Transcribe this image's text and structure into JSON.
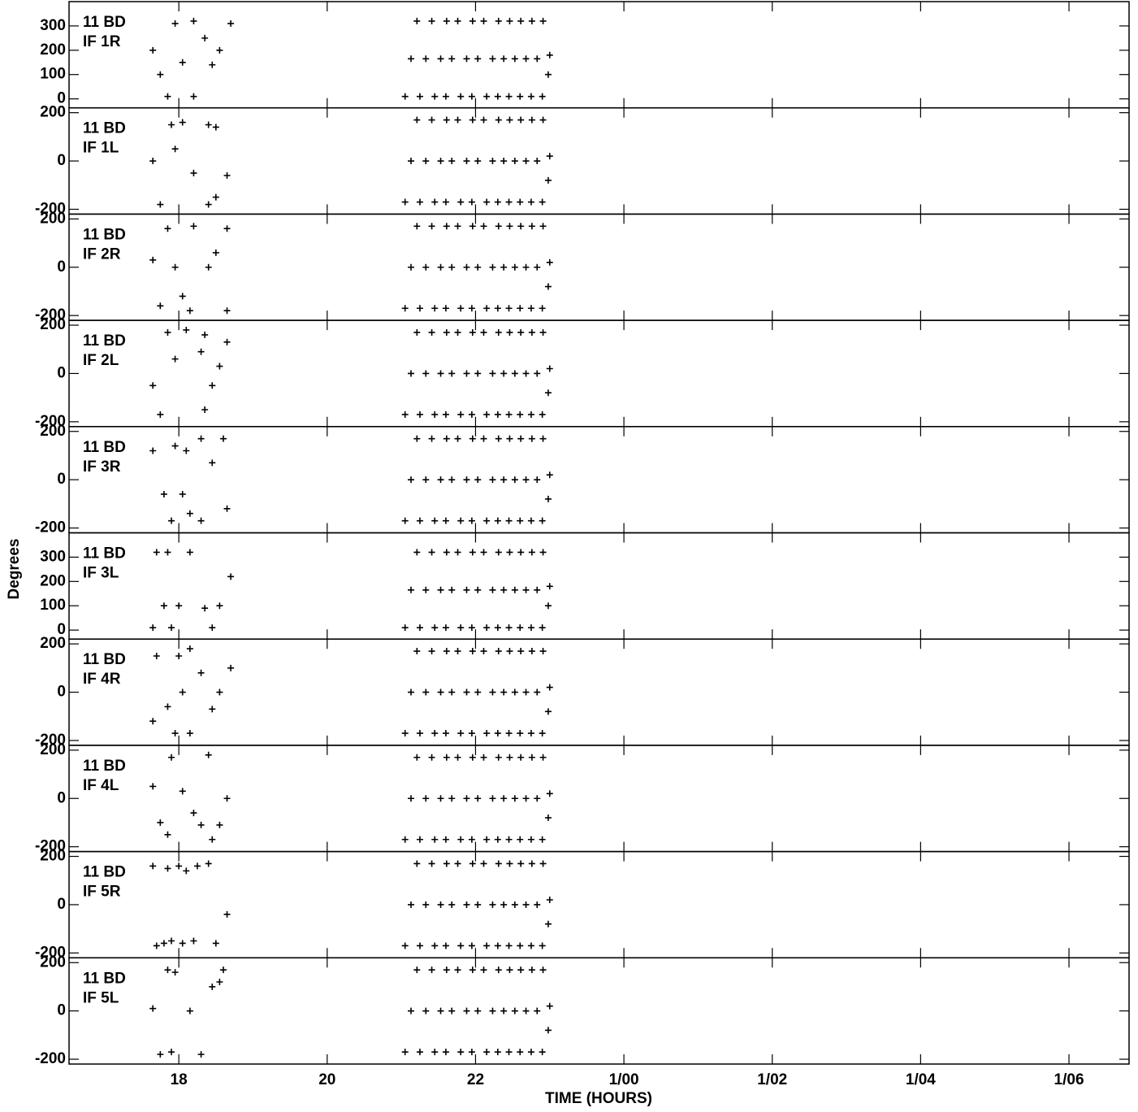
{
  "chart_data": {
    "type": "scatter",
    "marker": "+",
    "color": "#000000",
    "xlabel": "TIME (HOURS)",
    "ylabel": "Degrees",
    "xlim": [
      16.52,
      30.81
    ],
    "xticks": [
      18,
      20,
      22,
      {
        "value": 24,
        "label": "1/00"
      },
      {
        "value": 26,
        "label": "1/02"
      },
      {
        "value": 28,
        "label": "1/04"
      },
      {
        "value": 30,
        "label": "1/06"
      }
    ],
    "panels": [
      {
        "source": "11 BD",
        "name": "IF 1R",
        "ylim": [
          -37,
          400
        ],
        "yticks": [
          0,
          100,
          200,
          300
        ],
        "x": [
          17.65,
          17.75,
          17.85,
          17.95,
          18.05,
          18.2,
          18.2,
          18.35,
          18.45,
          18.55,
          18.7,
          21.05,
          21.13,
          21.21,
          21.25,
          21.33,
          21.41,
          21.45,
          21.53,
          21.61,
          21.6,
          21.68,
          21.76,
          21.8,
          21.88,
          21.96,
          21.95,
          22.03,
          22.11,
          22.15,
          22.23,
          22.31,
          22.3,
          22.38,
          22.46,
          22.45,
          22.53,
          22.61,
          22.6,
          22.68,
          22.76,
          22.75,
          22.83,
          22.91,
          22.9,
          22.98,
          23.0
        ],
        "y": [
          200,
          100,
          10,
          310,
          150,
          10,
          320,
          250,
          140,
          200,
          310,
          10,
          165,
          320,
          10,
          165,
          320,
          10,
          165,
          320,
          10,
          165,
          320,
          10,
          165,
          320,
          10,
          165,
          320,
          10,
          165,
          320,
          10,
          165,
          320,
          10,
          165,
          320,
          10,
          165,
          320,
          10,
          165,
          320,
          10,
          100,
          180
        ]
      },
      {
        "source": "11 BD",
        "name": "IF 1L",
        "ylim": [
          -220,
          220
        ],
        "yticks": [
          -200,
          0,
          200
        ],
        "x": [
          17.65,
          17.75,
          17.9,
          17.95,
          18.05,
          18.2,
          18.4,
          18.5,
          18.65,
          18.4,
          18.5,
          21.05,
          21.13,
          21.21,
          21.25,
          21.33,
          21.41,
          21.45,
          21.53,
          21.61,
          21.6,
          21.68,
          21.76,
          21.8,
          21.88,
          21.96,
          21.95,
          22.03,
          22.11,
          22.15,
          22.23,
          22.31,
          22.3,
          22.38,
          22.46,
          22.45,
          22.53,
          22.61,
          22.6,
          22.68,
          22.76,
          22.75,
          22.83,
          22.91,
          22.9,
          22.98,
          23.0
        ],
        "y": [
          0,
          -180,
          150,
          50,
          160,
          -50,
          -180,
          -150,
          -60,
          150,
          140,
          -170,
          0,
          170,
          -170,
          0,
          170,
          -170,
          0,
          170,
          -170,
          0,
          170,
          -170,
          0,
          170,
          -170,
          0,
          170,
          -170,
          0,
          170,
          -170,
          0,
          170,
          -170,
          0,
          170,
          -170,
          0,
          170,
          -170,
          0,
          170,
          -170,
          -80,
          20
        ]
      },
      {
        "source": "11 BD",
        "name": "IF 2R",
        "ylim": [
          -220,
          220
        ],
        "yticks": [
          -200,
          0,
          200
        ],
        "x": [
          17.65,
          17.75,
          17.85,
          17.95,
          18.05,
          18.15,
          18.2,
          18.4,
          18.5,
          18.65,
          18.65,
          21.05,
          21.13,
          21.21,
          21.25,
          21.33,
          21.41,
          21.45,
          21.53,
          21.61,
          21.6,
          21.68,
          21.76,
          21.8,
          21.88,
          21.96,
          21.95,
          22.03,
          22.11,
          22.15,
          22.23,
          22.31,
          22.3,
          22.38,
          22.46,
          22.45,
          22.53,
          22.61,
          22.6,
          22.68,
          22.76,
          22.75,
          22.83,
          22.91,
          22.9,
          22.98,
          23.0
        ],
        "y": [
          30,
          -160,
          160,
          0,
          -120,
          -180,
          170,
          0,
          60,
          160,
          -180,
          -170,
          0,
          170,
          -170,
          0,
          170,
          -170,
          0,
          170,
          -170,
          0,
          170,
          -170,
          0,
          170,
          -170,
          0,
          170,
          -170,
          0,
          170,
          -170,
          0,
          170,
          -170,
          0,
          170,
          -170,
          0,
          170,
          -170,
          0,
          170,
          -170,
          -80,
          20
        ]
      },
      {
        "source": "11 BD",
        "name": "IF 2L",
        "ylim": [
          -220,
          220
        ],
        "yticks": [
          -200,
          0,
          200
        ],
        "x": [
          17.65,
          17.75,
          17.85,
          17.95,
          18.1,
          18.3,
          18.35,
          18.45,
          18.55,
          18.65,
          18.35,
          21.05,
          21.13,
          21.21,
          21.25,
          21.33,
          21.41,
          21.45,
          21.53,
          21.61,
          21.6,
          21.68,
          21.76,
          21.8,
          21.88,
          21.96,
          21.95,
          22.03,
          22.11,
          22.15,
          22.23,
          22.31,
          22.3,
          22.38,
          22.46,
          22.45,
          22.53,
          22.61,
          22.6,
          22.68,
          22.76,
          22.75,
          22.83,
          22.91,
          22.9,
          22.98,
          23.0
        ],
        "y": [
          -50,
          -170,
          170,
          60,
          180,
          90,
          -150,
          -50,
          30,
          130,
          160,
          -170,
          0,
          170,
          -170,
          0,
          170,
          -170,
          0,
          170,
          -170,
          0,
          170,
          -170,
          0,
          170,
          -170,
          0,
          170,
          -170,
          0,
          170,
          -170,
          0,
          170,
          -170,
          0,
          170,
          -170,
          0,
          170,
          -170,
          0,
          170,
          -170,
          -80,
          20
        ]
      },
      {
        "source": "11 BD",
        "name": "IF 3R",
        "ylim": [
          -220,
          220
        ],
        "yticks": [
          -200,
          0,
          200
        ],
        "x": [
          17.65,
          17.8,
          17.9,
          17.95,
          18.05,
          18.1,
          18.15,
          18.3,
          18.3,
          18.45,
          18.6,
          18.65,
          21.05,
          21.13,
          21.21,
          21.25,
          21.33,
          21.41,
          21.45,
          21.53,
          21.61,
          21.6,
          21.68,
          21.76,
          21.8,
          21.88,
          21.96,
          21.95,
          22.03,
          22.11,
          22.15,
          22.23,
          22.31,
          22.3,
          22.38,
          22.46,
          22.45,
          22.53,
          22.61,
          22.6,
          22.68,
          22.76,
          22.75,
          22.83,
          22.91,
          22.9,
          22.98,
          23.0
        ],
        "y": [
          120,
          -60,
          -170,
          140,
          -60,
          120,
          -140,
          -170,
          170,
          70,
          170,
          -120,
          -170,
          0,
          170,
          -170,
          0,
          170,
          -170,
          0,
          170,
          -170,
          0,
          170,
          -170,
          0,
          170,
          -170,
          0,
          170,
          -170,
          0,
          170,
          -170,
          0,
          170,
          -170,
          0,
          170,
          -170,
          0,
          170,
          -170,
          0,
          170,
          -170,
          -80,
          20
        ]
      },
      {
        "source": "11 BD",
        "name": "IF 3L",
        "ylim": [
          -37,
          400
        ],
        "yticks": [
          0,
          100,
          200,
          300
        ],
        "x": [
          17.65,
          17.7,
          17.8,
          17.9,
          17.85,
          18.0,
          18.15,
          18.35,
          18.45,
          18.55,
          18.7,
          21.05,
          21.13,
          21.21,
          21.25,
          21.33,
          21.41,
          21.45,
          21.53,
          21.61,
          21.6,
          21.68,
          21.76,
          21.8,
          21.88,
          21.96,
          21.95,
          22.03,
          22.11,
          22.15,
          22.23,
          22.31,
          22.3,
          22.38,
          22.46,
          22.45,
          22.53,
          22.61,
          22.6,
          22.68,
          22.76,
          22.75,
          22.83,
          22.91,
          22.9,
          22.98,
          23.0
        ],
        "y": [
          10,
          320,
          100,
          10,
          320,
          100,
          320,
          90,
          10,
          100,
          220,
          10,
          165,
          320,
          10,
          165,
          320,
          10,
          165,
          320,
          10,
          165,
          320,
          10,
          165,
          320,
          10,
          165,
          320,
          10,
          165,
          320,
          10,
          165,
          320,
          10,
          165,
          320,
          10,
          165,
          320,
          10,
          165,
          320,
          10,
          100,
          180
        ]
      },
      {
        "source": "11 BD",
        "name": "IF 4R",
        "ylim": [
          -220,
          220
        ],
        "yticks": [
          -200,
          0,
          200
        ],
        "x": [
          17.65,
          17.7,
          17.85,
          17.95,
          18.0,
          18.05,
          18.15,
          18.3,
          18.45,
          18.55,
          18.7,
          18.15,
          21.05,
          21.13,
          21.21,
          21.25,
          21.33,
          21.41,
          21.45,
          21.53,
          21.61,
          21.6,
          21.68,
          21.76,
          21.8,
          21.88,
          21.96,
          21.95,
          22.03,
          22.11,
          22.15,
          22.23,
          22.31,
          22.3,
          22.38,
          22.46,
          22.45,
          22.53,
          22.61,
          22.6,
          22.68,
          22.76,
          22.75,
          22.83,
          22.91,
          22.9,
          22.98,
          23.0
        ],
        "y": [
          -120,
          150,
          -60,
          -170,
          150,
          0,
          180,
          80,
          -70,
          0,
          100,
          -170,
          -170,
          0,
          170,
          -170,
          0,
          170,
          -170,
          0,
          170,
          -170,
          0,
          170,
          -170,
          0,
          170,
          -170,
          0,
          170,
          -170,
          0,
          170,
          -170,
          0,
          170,
          -170,
          0,
          170,
          -170,
          0,
          170,
          -170,
          0,
          170,
          -170,
          -80,
          20
        ]
      },
      {
        "source": "11 BD",
        "name": "IF 4L",
        "ylim": [
          -220,
          220
        ],
        "yticks": [
          -200,
          0,
          200
        ],
        "x": [
          17.65,
          17.75,
          17.85,
          17.9,
          18.05,
          18.2,
          18.3,
          18.45,
          18.55,
          18.65,
          18.4,
          21.05,
          21.13,
          21.21,
          21.25,
          21.33,
          21.41,
          21.45,
          21.53,
          21.61,
          21.6,
          21.68,
          21.76,
          21.8,
          21.88,
          21.96,
          21.95,
          22.03,
          22.11,
          22.15,
          22.23,
          22.31,
          22.3,
          22.38,
          22.46,
          22.45,
          22.53,
          22.61,
          22.6,
          22.68,
          22.76,
          22.75,
          22.83,
          22.91,
          22.9,
          22.98,
          23.0
        ],
        "y": [
          50,
          -100,
          -150,
          170,
          30,
          -60,
          -110,
          -170,
          -110,
          0,
          180,
          -170,
          0,
          170,
          -170,
          0,
          170,
          -170,
          0,
          170,
          -170,
          0,
          170,
          -170,
          0,
          170,
          -170,
          0,
          170,
          -170,
          0,
          170,
          -170,
          0,
          170,
          -170,
          0,
          170,
          -170,
          0,
          170,
          -170,
          0,
          170,
          -170,
          -80,
          20
        ]
      },
      {
        "source": "11 BD",
        "name": "IF 5R",
        "ylim": [
          -220,
          220
        ],
        "yticks": [
          -200,
          0,
          200
        ],
        "x": [
          17.65,
          17.7,
          17.8,
          17.85,
          17.9,
          18.0,
          18.05,
          18.1,
          18.2,
          18.25,
          18.4,
          18.5,
          18.65,
          21.05,
          21.13,
          21.21,
          21.25,
          21.33,
          21.41,
          21.45,
          21.53,
          21.61,
          21.6,
          21.68,
          21.76,
          21.8,
          21.88,
          21.96,
          21.95,
          22.03,
          22.11,
          22.15,
          22.23,
          22.31,
          22.3,
          22.38,
          22.46,
          22.45,
          22.53,
          22.61,
          22.6,
          22.68,
          22.76,
          22.75,
          22.83,
          22.91,
          22.9,
          22.98,
          23.0
        ],
        "y": [
          160,
          -170,
          -160,
          150,
          -150,
          160,
          -160,
          140,
          -150,
          160,
          170,
          -160,
          -40,
          -170,
          0,
          170,
          -170,
          0,
          170,
          -170,
          0,
          170,
          -170,
          0,
          170,
          -170,
          0,
          170,
          -170,
          0,
          170,
          -170,
          0,
          170,
          -170,
          0,
          170,
          -170,
          0,
          170,
          -170,
          0,
          170,
          -170,
          0,
          170,
          -170,
          -80,
          20
        ]
      },
      {
        "source": "11 BD",
        "name": "IF 5L",
        "ylim": [
          -220,
          220
        ],
        "yticks": [
          -200,
          0,
          200
        ],
        "x": [
          17.65,
          17.75,
          17.85,
          17.9,
          17.95,
          18.15,
          18.3,
          18.45,
          18.55,
          18.6,
          21.05,
          21.13,
          21.21,
          21.25,
          21.33,
          21.41,
          21.45,
          21.53,
          21.61,
          21.6,
          21.68,
          21.76,
          21.8,
          21.88,
          21.96,
          21.95,
          22.03,
          22.11,
          22.15,
          22.23,
          22.31,
          22.3,
          22.38,
          22.46,
          22.45,
          22.53,
          22.61,
          22.6,
          22.68,
          22.76,
          22.75,
          22.83,
          22.91,
          22.9,
          22.98,
          23.0
        ],
        "y": [
          10,
          -180,
          170,
          -170,
          160,
          0,
          -180,
          100,
          120,
          170,
          -170,
          0,
          170,
          -170,
          0,
          170,
          -170,
          0,
          170,
          -170,
          0,
          170,
          -170,
          0,
          170,
          -170,
          0,
          170,
          -170,
          0,
          170,
          -170,
          0,
          170,
          -170,
          0,
          170,
          -170,
          0,
          170,
          -170,
          0,
          170,
          -170,
          -80,
          20
        ]
      }
    ]
  }
}
